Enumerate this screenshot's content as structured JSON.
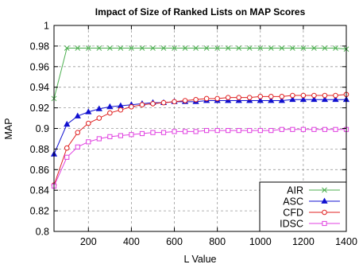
{
  "chart_data": {
    "type": "line",
    "title": "Impact of Size of Ranked Lists on MAP Scores",
    "xlabel": "L Value",
    "ylabel": "MAP",
    "xlim": [
      40,
      1400
    ],
    "ylim": [
      0.8,
      1.0
    ],
    "xticks": [
      200,
      400,
      600,
      800,
      1000,
      1200,
      1400
    ],
    "yticks": [
      0.8,
      0.82,
      0.84,
      0.86,
      0.88,
      0.9,
      0.92,
      0.94,
      0.96,
      0.98,
      1.0
    ],
    "xtick_labels": [
      "200",
      "400",
      "600",
      "800",
      "1000",
      "1200",
      "1400"
    ],
    "ytick_labels": [
      "0.8",
      "0.82",
      "0.84",
      "0.86",
      "0.88",
      "0.9",
      "0.92",
      "0.94",
      "0.96",
      "0.98",
      "1"
    ],
    "grid": true,
    "legend_position": "bottom-right",
    "x": [
      40,
      100,
      150,
      200,
      250,
      300,
      350,
      400,
      450,
      500,
      550,
      600,
      650,
      700,
      750,
      800,
      850,
      900,
      950,
      1000,
      1050,
      1100,
      1150,
      1200,
      1250,
      1300,
      1350,
      1400
    ],
    "series": [
      {
        "name": "AIR",
        "color": "#4caf50",
        "marker": "x",
        "values": [
          0.929,
          0.978,
          0.978,
          0.978,
          0.978,
          0.978,
          0.978,
          0.978,
          0.978,
          0.978,
          0.978,
          0.978,
          0.978,
          0.978,
          0.978,
          0.978,
          0.978,
          0.978,
          0.978,
          0.978,
          0.978,
          0.978,
          0.978,
          0.978,
          0.978,
          0.978,
          0.978,
          0.977
        ]
      },
      {
        "name": "ASC",
        "color": "#1010d0",
        "marker": "triangle",
        "values": [
          0.875,
          0.904,
          0.912,
          0.916,
          0.919,
          0.921,
          0.922,
          0.923,
          0.924,
          0.925,
          0.925,
          0.926,
          0.926,
          0.926,
          0.927,
          0.927,
          0.927,
          0.927,
          0.927,
          0.927,
          0.927,
          0.927,
          0.928,
          0.928,
          0.928,
          0.928,
          0.928,
          0.928
        ]
      },
      {
        "name": "CFD",
        "color": "#e02020",
        "marker": "circle",
        "values": [
          0.845,
          0.881,
          0.896,
          0.905,
          0.91,
          0.915,
          0.918,
          0.921,
          0.923,
          0.924,
          0.925,
          0.926,
          0.927,
          0.928,
          0.929,
          0.929,
          0.93,
          0.93,
          0.93,
          0.931,
          0.931,
          0.931,
          0.932,
          0.932,
          0.932,
          0.932,
          0.932,
          0.933
        ]
      },
      {
        "name": "IDSC",
        "color": "#e040e0",
        "marker": "square",
        "values": [
          0.844,
          0.872,
          0.882,
          0.887,
          0.89,
          0.892,
          0.893,
          0.894,
          0.895,
          0.896,
          0.896,
          0.897,
          0.897,
          0.897,
          0.898,
          0.898,
          0.898,
          0.898,
          0.898,
          0.898,
          0.898,
          0.899,
          0.899,
          0.899,
          0.899,
          0.899,
          0.899,
          0.899
        ]
      }
    ]
  }
}
